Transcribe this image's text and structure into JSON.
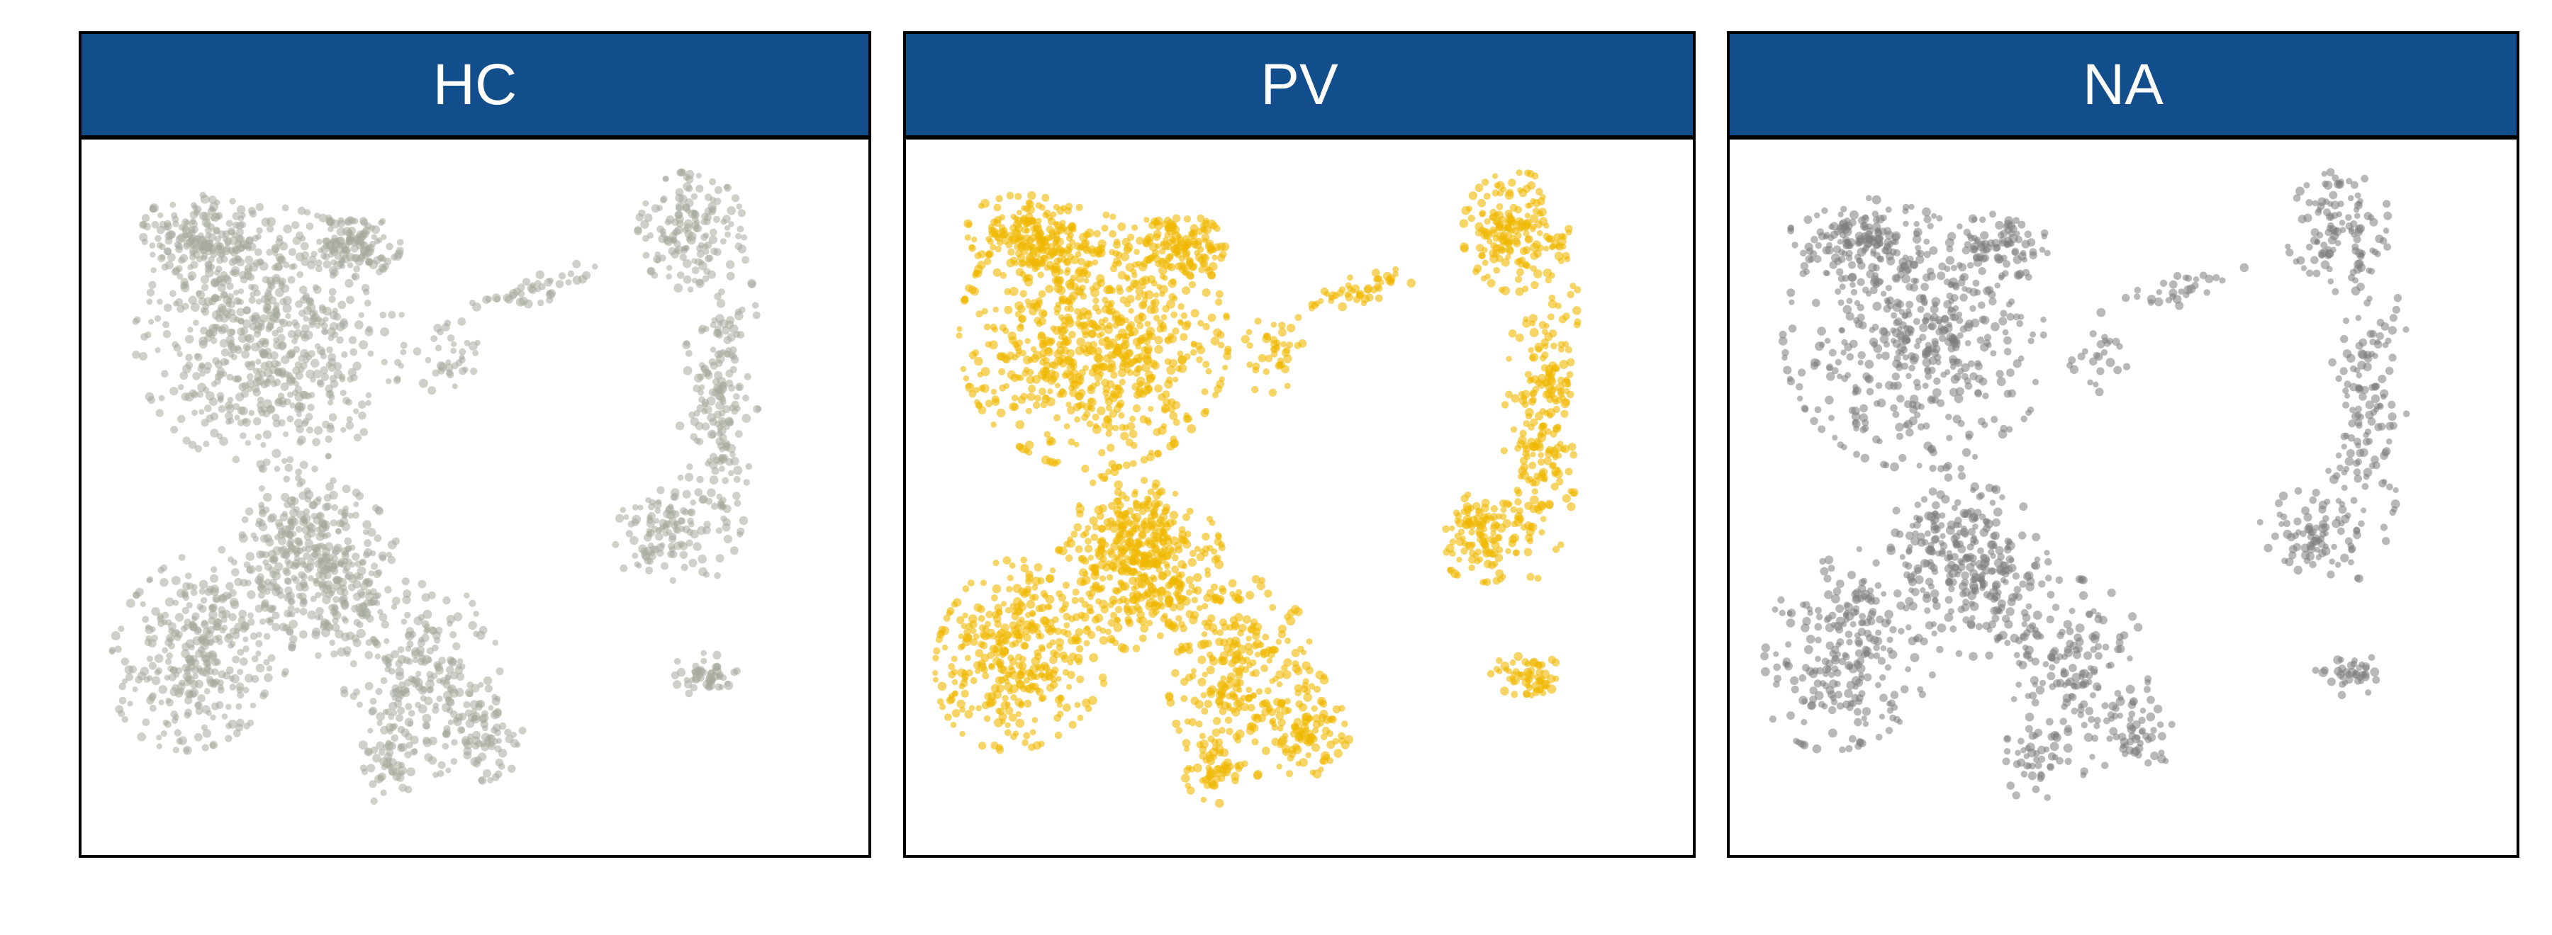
{
  "chart_data": [
    {
      "type": "scatter",
      "title": "HC",
      "series": [
        {
          "color": "#a6a99c"
        }
      ],
      "grid": false,
      "legend": "none"
    },
    {
      "type": "scatter",
      "title": "PV",
      "series": [
        {
          "color": "#f0b800"
        }
      ],
      "grid": false,
      "legend": "none"
    },
    {
      "type": "scatter",
      "title": "NA",
      "series": [
        {
          "color": "#7d7d7d"
        }
      ],
      "grid": false,
      "legend": "none"
    }
  ],
  "colors": {
    "strip_background": "#114e8b",
    "strip_text": "#ffffff",
    "panel_border": "#000000"
  }
}
